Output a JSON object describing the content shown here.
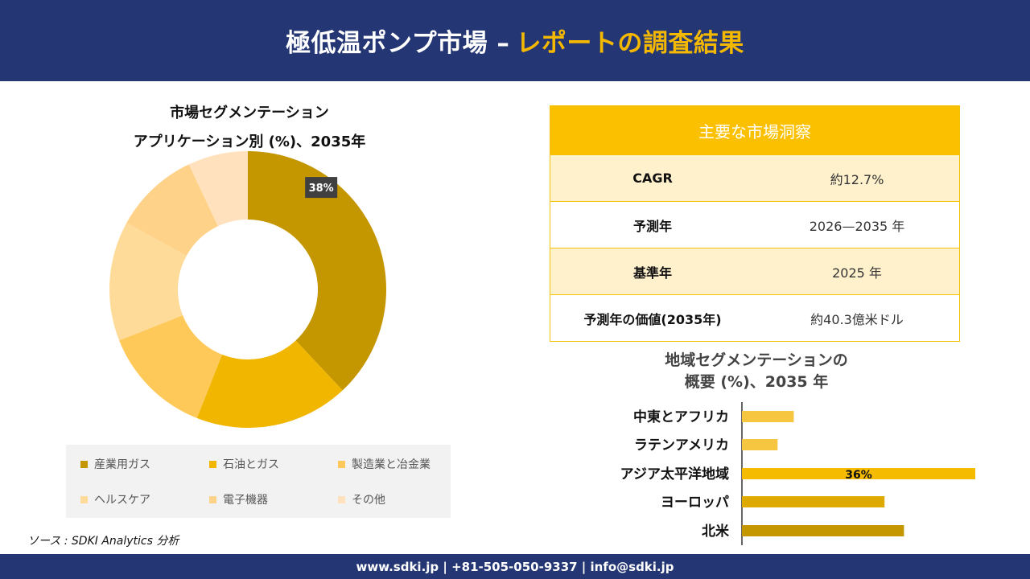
{
  "header": {
    "title_main": "極低温ポンプ市場 –",
    "title_accent": "レポートの調査結果"
  },
  "pie": {
    "title_line1": "市場セグメンテーション",
    "title_line2": "アプリケーション別 (%)、2035年"
  },
  "source": "ソース : SDKI Analytics 分析",
  "insight": {
    "header": "主要な市場洞察",
    "rows": [
      {
        "label": "CAGR",
        "value": "約12.7%"
      },
      {
        "label": "予測年",
        "value": "2026—2035 年"
      },
      {
        "label": "基準年",
        "value": "2025 年"
      },
      {
        "label": "予測年の価値(2035年)",
        "value": "約40.3億米ドル"
      }
    ]
  },
  "bar": {
    "title_line1": "地域セグメンテーションの",
    "title_line2": "概要 (%)、2035 年"
  },
  "footer": "www.sdki.jp | +81-505-050-9337 | info@sdki.jp",
  "chart_data": [
    {
      "type": "pie",
      "title": "市場セグメンテーション アプリケーション別 (%)、2035年",
      "categories": [
        "産業用ガス",
        "石油とガス",
        "製造業と冶金業",
        "ヘルスケア",
        "電子機器",
        "その他"
      ],
      "values": [
        38,
        18,
        13,
        14,
        10,
        7
      ],
      "colors": [
        "#c49600",
        "#f1b600",
        "#ffc95a",
        "#ffdb99",
        "#ffd28a",
        "#ffe2bd"
      ],
      "data_labels": [
        "38%",
        "",
        "",
        "",
        "",
        ""
      ],
      "legend_position": "bottom"
    },
    {
      "type": "bar",
      "orientation": "horizontal",
      "title": "地域セグメンテーションの 概要 (%)、2035 年",
      "categories": [
        "中東とアフリカ",
        "ラテンアメリカ",
        "アジア太平洋地域",
        "ヨーロッパ",
        "北米"
      ],
      "values": [
        8,
        5.5,
        36,
        22,
        25
      ],
      "colors": [
        "#f7c640",
        "#f7c640",
        "#f5bb00",
        "#deaa00",
        "#c49600"
      ],
      "data_labels": [
        "",
        "",
        "36%",
        "",
        ""
      ]
    }
  ]
}
